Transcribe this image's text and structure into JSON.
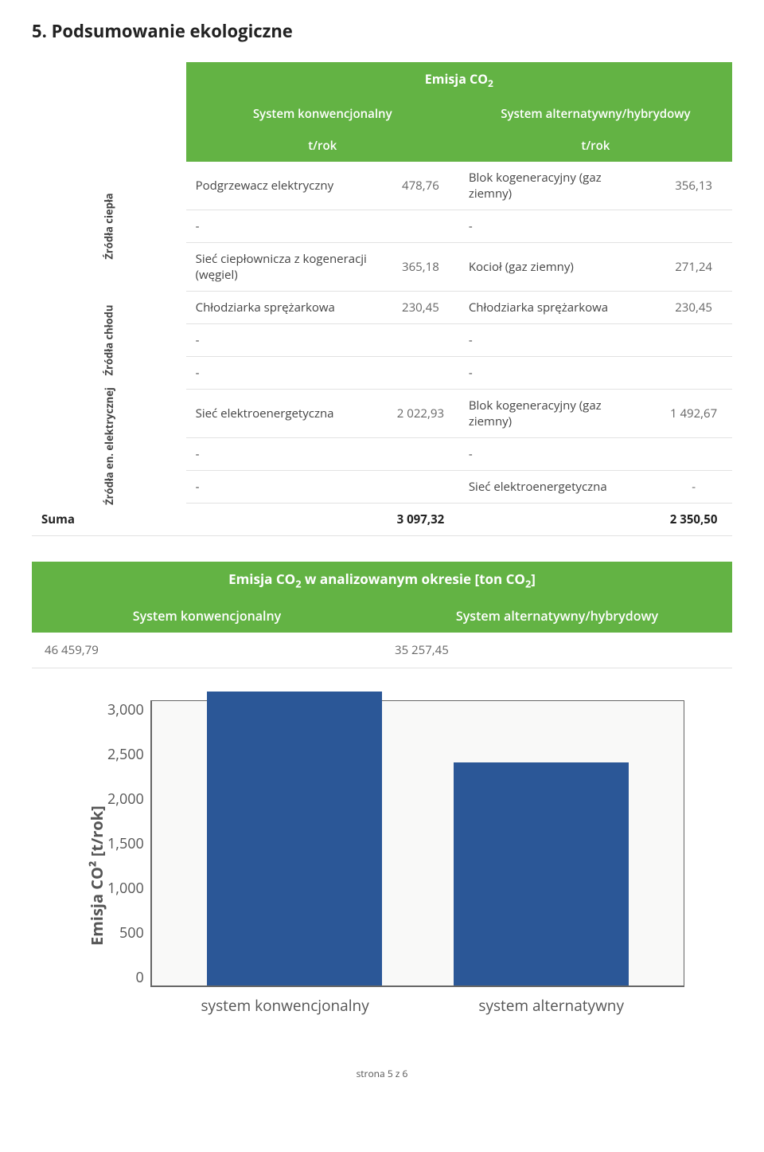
{
  "section_title": "5. Podsumowanie ekologiczne",
  "table1": {
    "title_html": "Emisja CO<sub>2</sub>",
    "col_left": "System konwencjonalny",
    "col_right": "System alternatywny/hybrydowy",
    "unit": "t/rok",
    "groups": [
      {
        "label": "Źródła ciepła",
        "rows": [
          {
            "l_name": "Podgrzewacz elektryczny",
            "l_val": "478,76",
            "r_name": "Blok kogeneracyjny (gaz ziemny)",
            "r_val": "356,13"
          },
          {
            "l_name": "-",
            "l_val": "",
            "r_name": "-",
            "r_val": ""
          },
          {
            "l_name": "Sieć ciepłownicza z kogeneracji (węgiel)",
            "l_val": "365,18",
            "r_name": "Kocioł (gaz ziemny)",
            "r_val": "271,24"
          }
        ]
      },
      {
        "label": "Źródła chłodu",
        "rows": [
          {
            "l_name": "Chłodziarka sprężarkowa",
            "l_val": "230,45",
            "r_name": "Chłodziarka sprężarkowa",
            "r_val": "230,45"
          },
          {
            "l_name": "-",
            "l_val": "",
            "r_name": "-",
            "r_val": ""
          },
          {
            "l_name": "-",
            "l_val": "",
            "r_name": "-",
            "r_val": ""
          }
        ]
      },
      {
        "label": "Źródła en. elektrycznej",
        "rows": [
          {
            "l_name": "Sieć elektroenergetyczna",
            "l_val": "2 022,93",
            "r_name": "Blok kogeneracyjny (gaz ziemny)",
            "r_val": "1 492,67"
          },
          {
            "l_name": "-",
            "l_val": "",
            "r_name": "-",
            "r_val": ""
          },
          {
            "l_name": "-",
            "l_val": "",
            "r_name": "Sieć elektroenergetyczna",
            "r_val": "-"
          }
        ]
      }
    ],
    "sum_label": "Suma",
    "sum_left": "3 097,32",
    "sum_right": "2 350,50"
  },
  "table2": {
    "title_html": "Emisja CO<sub>2</sub>  w analizowanym okresie [ton CO<sub>2</sub>]",
    "col_left": "System konwencjonalny",
    "col_right": "System alternatywny/hybrydowy",
    "val_left": "46 459,79",
    "val_right": "35 257,45"
  },
  "chart": {
    "type": "bar",
    "ylabel": "Emisja CO² [t/rok]",
    "ylim": [
      0,
      3000
    ],
    "ytick_step": 500,
    "yticks": [
      "3,000",
      "2,500",
      "2,000",
      "1,500",
      "1,000",
      "500",
      "0"
    ],
    "categories": [
      "system konwencjonalny",
      "system alternatywny"
    ],
    "values": [
      3097.32,
      2350.5
    ],
    "bar_color": "#2b5797",
    "plot_bg": "#f9f9f8",
    "axis_color": "#666666"
  },
  "footer": "strona 5 z 6"
}
